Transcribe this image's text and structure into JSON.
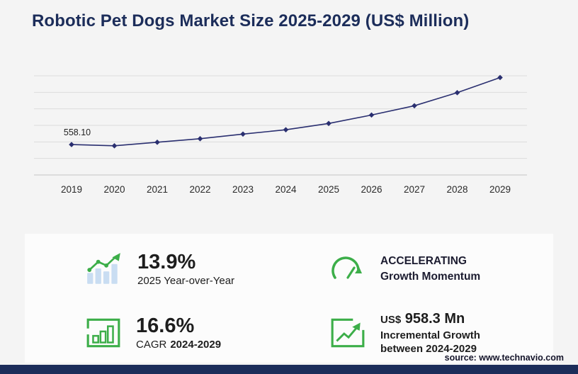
{
  "page": {
    "title": "Robotic Pet Dogs Market Size 2025-2029 (US$ Million)",
    "source": "source: www.technavio.com"
  },
  "chart_data": {
    "type": "line",
    "title": "Robotic Pet Dogs Market Size 2025-2029 (US$ Million)",
    "x": [
      "2019",
      "2020",
      "2021",
      "2022",
      "2023",
      "2024",
      "2025",
      "2026",
      "2027",
      "2028",
      "2029"
    ],
    "values": [
      558.1,
      535,
      600,
      665,
      750,
      830,
      945,
      1100,
      1270,
      1510,
      1788
    ],
    "first_point_label": "558.10",
    "xlabel": "",
    "ylabel": "",
    "ylim": [
      0,
      1820
    ],
    "grid": true,
    "legend": "none",
    "line_color": "#2a2f70",
    "marker": "diamond"
  },
  "stats": {
    "yoy": {
      "value": "13.9%",
      "label": "2025 Year-over-Year"
    },
    "momentum": {
      "line1": "ACCELERATING",
      "line2": "Growth Momentum"
    },
    "cagr": {
      "value": "16.6%",
      "label_prefix": "CAGR",
      "label_years": "2024-2029"
    },
    "incremental": {
      "currency": "US$",
      "value": "958.3 Mn",
      "label_line1": "Incremental Growth",
      "label_line2": "between 2024-2029"
    }
  },
  "colors": {
    "navy": "#1c2d5a",
    "green": "#3cae49",
    "line": "#2a2f70",
    "light_blue_bars": "#c9ddf2",
    "background": "#f4f4f4"
  }
}
